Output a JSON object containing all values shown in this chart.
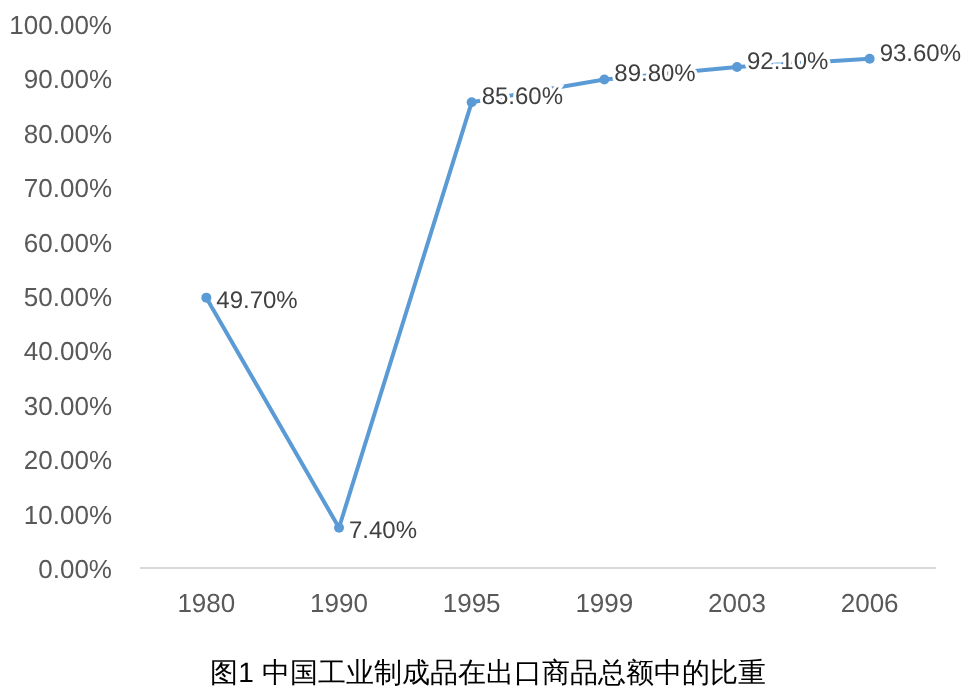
{
  "chart_data": {
    "type": "line",
    "title": "图1 中国工业制成品在出口商品总额中的比重",
    "categories": [
      "1980",
      "1990",
      "1995",
      "1999",
      "2003",
      "2006"
    ],
    "series": [
      {
        "color": "#5b9bd5",
        "values": [
          49.7,
          7.4,
          85.6,
          89.8,
          92.1,
          93.6
        ],
        "value_labels": [
          "49.70%",
          "7.40%",
          "85.60%",
          "89.80%",
          "92.10%",
          "93.60%"
        ]
      }
    ],
    "ylim": [
      0,
      100
    ],
    "yticks": [
      {
        "value": 0,
        "label": "0.00%"
      },
      {
        "value": 10,
        "label": "10.00%"
      },
      {
        "value": 20,
        "label": "20.00%"
      },
      {
        "value": 30,
        "label": "30.00%"
      },
      {
        "value": 40,
        "label": "40.00%"
      },
      {
        "value": 50,
        "label": "50.00%"
      },
      {
        "value": 60,
        "label": "60.00%"
      },
      {
        "value": 70,
        "label": "70.00%"
      },
      {
        "value": 80,
        "label": "80.00%"
      },
      {
        "value": 90,
        "label": "90.00%"
      },
      {
        "value": 100,
        "label": "100.00%"
      }
    ],
    "marker": "circle",
    "line_style": "solid"
  }
}
